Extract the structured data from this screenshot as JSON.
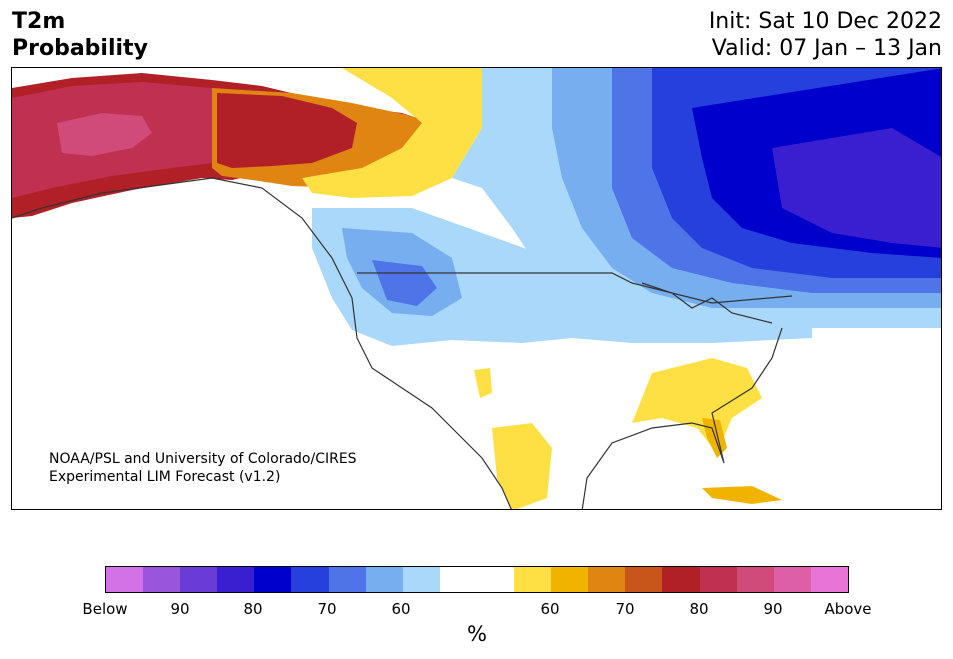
{
  "header": {
    "title_line1": "T2m",
    "title_line2": "Probability",
    "init": "Init: Sat 10 Dec 2022",
    "valid": "Valid: 07 Jan – 13 Jan"
  },
  "credit": {
    "line1": "NOAA/PSL and University of Colorado/CIRES",
    "line2": "Experimental LIM Forecast (v1.2)"
  },
  "colorbar": {
    "colors": [
      "#d272e6",
      "#9a55dd",
      "#6a3bd6",
      "#3a1fd0",
      "#0000cc",
      "#2540dd",
      "#4f74e8",
      "#76aef0",
      "#aad8fa",
      "#ffffff",
      "#ffffff",
      "#ffe044",
      "#f0b400",
      "#e08412",
      "#c8551a",
      "#b02026",
      "#c03050",
      "#d04a7a",
      "#dc5fa8",
      "#e874d8"
    ],
    "tick_labels": [
      "Below",
      "90",
      "80",
      "70",
      "60",
      "60",
      "70",
      "80",
      "90",
      "Above"
    ],
    "unit": "%"
  },
  "map": {
    "region": "North America",
    "colors": {
      "ocean": "#ffffff",
      "outline": "#333333",
      "above_90": "#d04a7a",
      "above_80": "#c03050",
      "above_70": "#b02026",
      "above_65": "#c8551a",
      "above_60": "#e08412",
      "above_55": "#f0b400",
      "above_50": "#ffe044",
      "below_50": "#aad8fa",
      "below_55": "#76aef0",
      "below_60": "#4f74e8",
      "below_65": "#2540dd",
      "below_70": "#0000cc",
      "below_80": "#3a1fd0"
    }
  }
}
